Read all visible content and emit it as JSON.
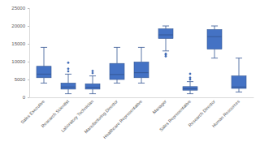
{
  "chart_data": {
    "type": "box",
    "categories": [
      "Sales Executive",
      "Research Scientist",
      "Laboratory Technician",
      "Manufacturing Director",
      "Healthcare Representative",
      "Manager",
      "Sales Representative",
      "Research Director",
      "Human Resources"
    ],
    "boxes": [
      {
        "min": 4000,
        "q1": 5500,
        "median": 6500,
        "q3": 8700,
        "max": 14000,
        "outliers": []
      },
      {
        "min": 1000,
        "q1": 2300,
        "median": 2900,
        "q3": 4000,
        "max": 6500,
        "outliers": [
          7300,
          8000,
          9700
        ]
      },
      {
        "min": 1000,
        "q1": 2300,
        "median": 2800,
        "q3": 3800,
        "max": 6000,
        "outliers": [
          6800,
          7400
        ]
      },
      {
        "min": 4000,
        "q1": 5000,
        "median": 6400,
        "q3": 9500,
        "max": 14000,
        "outliers": []
      },
      {
        "min": 4000,
        "q1": 5500,
        "median": 6900,
        "q3": 9900,
        "max": 14000,
        "outliers": []
      },
      {
        "min": 13000,
        "q1": 16500,
        "median": 17500,
        "q3": 19200,
        "max": 20000,
        "outliers": [
          11500,
          11900,
          12200
        ]
      },
      {
        "min": 1000,
        "q1": 2000,
        "median": 2400,
        "q3": 3000,
        "max": 4400,
        "outliers": [
          5000,
          5500,
          6600
        ]
      },
      {
        "min": 11000,
        "q1": 13500,
        "median": 17000,
        "q3": 19000,
        "max": 20000,
        "outliers": []
      },
      {
        "min": 1500,
        "q1": 2500,
        "median": 2900,
        "q3": 6000,
        "max": 11000,
        "outliers": []
      }
    ],
    "color": "#4472c4",
    "ylim": [
      0,
      25000
    ],
    "yticks": [
      0,
      5000,
      10000,
      15000,
      20000,
      25000
    ],
    "grid": false
  }
}
